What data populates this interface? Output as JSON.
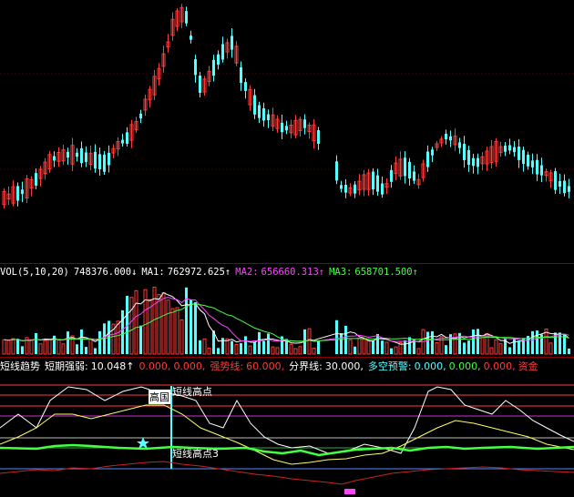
{
  "vol_header": {
    "name": "VOL(5,10,20)",
    "vol": "748376.000↓",
    "ma1_label": "MA1:",
    "ma1": "762972.625↑",
    "ma2_label": "MA2:",
    "ma2": "656660.313↑",
    "ma3_label": "MA3:",
    "ma3": "658701.500↑"
  },
  "ind_header": {
    "title": "短线趋势",
    "short_strength_label": "短期强弱:",
    "short_strength": "10.048↑",
    "v2": "0.000,",
    "v3": "0.000,",
    "strong_label": "强势线:",
    "strong": "60.000,",
    "divide_label": "分界线:",
    "divide": "30.000,",
    "warn_label": "多空预警:",
    "w1": "0.000,",
    "w2": "0.000,",
    "w3": "0.000,",
    "fund_label": "资金"
  },
  "markers": {
    "high_label": "高国",
    "short_high": "短线高点",
    "short_high3": "短线高点3"
  },
  "colors": {
    "up": "#ff3b3b",
    "down": "#54ffff",
    "bg": "#000000",
    "separator": "#8b0000",
    "ma1": "#ffffff",
    "ma2": "#ff44ff",
    "ma3": "#44ff44"
  }
}
